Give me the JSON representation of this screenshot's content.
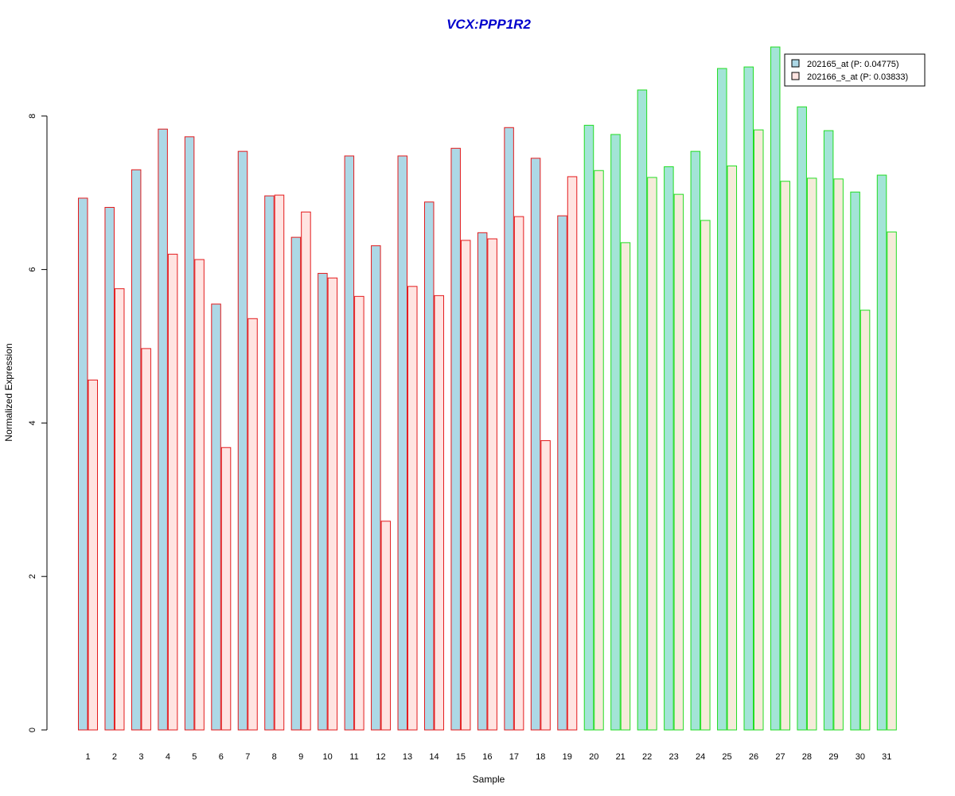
{
  "chart_data": {
    "type": "bar",
    "title": "VCX:PPP1R2",
    "xlabel": "Sample",
    "ylabel": "Normalized Expression",
    "ylim": [
      0,
      9
    ],
    "yticks": [
      "0",
      "2",
      "4",
      "6",
      "8"
    ],
    "grid": false,
    "legend_position": "top-right",
    "categories": [
      "1",
      "2",
      "3",
      "4",
      "5",
      "6",
      "7",
      "8",
      "9",
      "10",
      "11",
      "12",
      "13",
      "14",
      "15",
      "16",
      "17",
      "18",
      "19",
      "20",
      "21",
      "22",
      "23",
      "24",
      "25",
      "26",
      "27",
      "28",
      "29",
      "30",
      "31"
    ],
    "groups": [
      {
        "samples": [
          1,
          19
        ],
        "border_color": "#e31a1c"
      },
      {
        "samples": [
          20,
          31
        ],
        "border_color": "#22dd22"
      }
    ],
    "series": [
      {
        "name": "202165_at (P: 0.04775)",
        "fill_group1": "#add8e6",
        "fill_group2": "#a3e4d7",
        "values": [
          6.93,
          6.81,
          7.3,
          7.83,
          7.73,
          5.55,
          7.54,
          6.96,
          6.42,
          5.95,
          7.48,
          6.31,
          7.48,
          6.88,
          7.58,
          6.48,
          7.85,
          7.45,
          6.7,
          7.88,
          7.76,
          8.34,
          7.34,
          7.54,
          8.62,
          8.64,
          8.9,
          8.12,
          7.81,
          7.01,
          7.23
        ]
      },
      {
        "name": "202166_s_at (P: 0.03833)",
        "fill_group1": "#ffe4e1",
        "fill_group2": "#f5ebd9",
        "values": [
          4.56,
          5.75,
          4.97,
          6.2,
          6.13,
          3.68,
          5.36,
          6.97,
          6.75,
          5.89,
          5.65,
          2.72,
          5.78,
          5.66,
          6.38,
          6.4,
          6.69,
          3.77,
          7.21,
          7.29,
          6.35,
          7.2,
          6.98,
          6.64,
          7.35,
          7.82,
          7.15,
          7.19,
          7.18,
          5.47,
          6.49
        ]
      }
    ],
    "colors": {
      "title": "#0000cc",
      "axis": "#000000",
      "legend_border": "#000000"
    }
  }
}
